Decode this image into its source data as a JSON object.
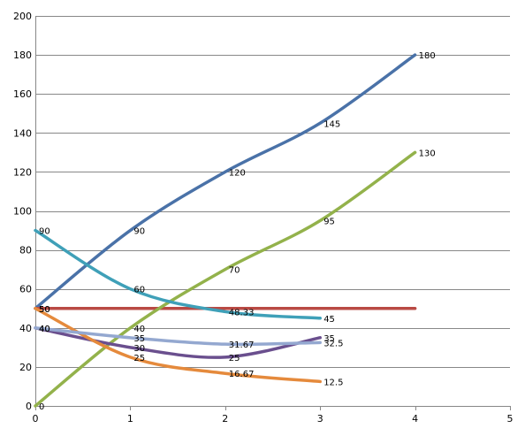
{
  "chart_data": {
    "type": "line",
    "title": "",
    "xlabel": "",
    "ylabel": "",
    "xlim": [
      0,
      5
    ],
    "ylim": [
      0,
      200
    ],
    "x_ticks": [
      "0",
      "1",
      "2",
      "3",
      "4",
      "5"
    ],
    "y_ticks": [
      "0",
      "20",
      "40",
      "60",
      "80",
      "100",
      "120",
      "140",
      "160",
      "180",
      "200"
    ],
    "grid": "horizontal",
    "legend": "none",
    "series": [
      {
        "color": "#4a72a8",
        "x": [
          0,
          1,
          2,
          3,
          4
        ],
        "y": [
          50,
          90,
          120,
          145,
          180
        ],
        "labels": [
          "50",
          "90",
          "120",
          "145",
          "180"
        ]
      },
      {
        "color": "#b94a44",
        "x": [
          0,
          4
        ],
        "y": [
          50,
          50
        ],
        "labels": [
          "",
          ""
        ]
      },
      {
        "color": "#93b24b",
        "x": [
          0,
          1,
          2,
          3,
          4
        ],
        "y": [
          0,
          40,
          70,
          95,
          130
        ],
        "labels": [
          "0",
          "40",
          "70",
          "95",
          "130"
        ]
      },
      {
        "color": "#6a4f8e",
        "x": [
          0,
          1,
          2,
          3
        ],
        "y": [
          40,
          30,
          25,
          35
        ],
        "labels": [
          "40",
          "30",
          "25",
          "35"
        ]
      },
      {
        "color": "#3fa0b8",
        "x": [
          0,
          1,
          2,
          3
        ],
        "y": [
          90,
          60,
          48.33,
          45
        ],
        "labels": [
          "90",
          "60",
          "48.33",
          "45"
        ]
      },
      {
        "color": "#e58a3c",
        "x": [
          0,
          1,
          2,
          3
        ],
        "y": [
          50,
          25,
          16.67,
          12.5
        ],
        "labels": [
          "50",
          "25",
          "16.67",
          "12.5"
        ]
      },
      {
        "color": "#94a8d0",
        "x": [
          0,
          1,
          2,
          3
        ],
        "y": [
          40,
          35,
          31.67,
          32.5
        ],
        "labels": [
          "40",
          "35",
          "31.67",
          "32.5"
        ]
      }
    ]
  }
}
